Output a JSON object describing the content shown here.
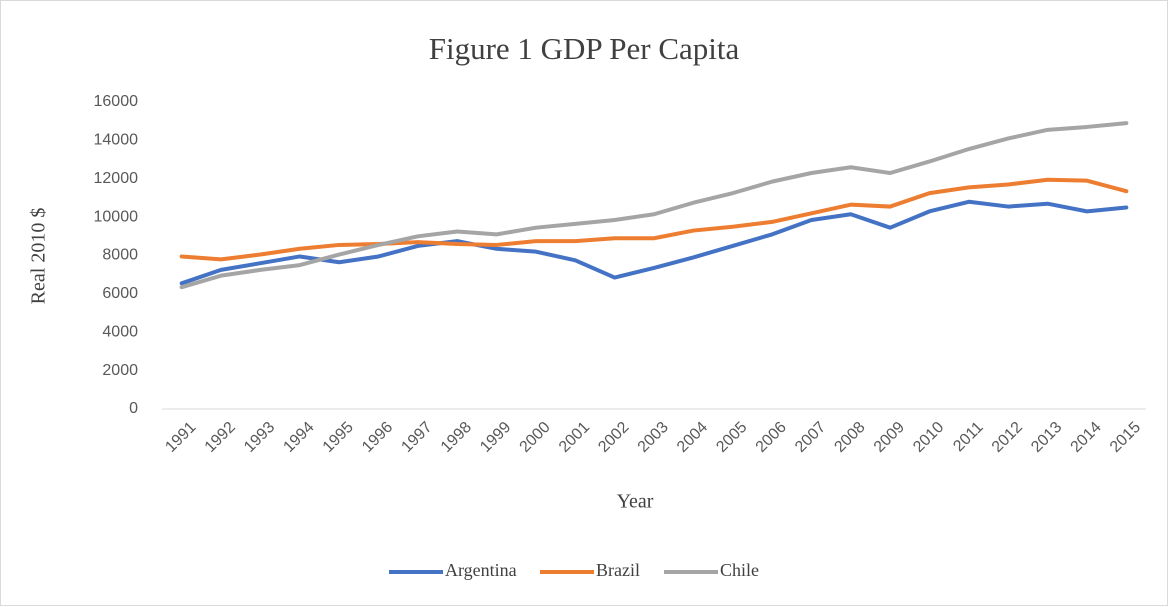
{
  "chart_data": {
    "type": "line",
    "title": "Figure 1 GDP Per Capita",
    "x_label": "Year",
    "y_label": "Real 2010 $",
    "categories": [
      "1991",
      "1992",
      "1993",
      "1994",
      "1995",
      "1996",
      "1997",
      "1998",
      "1999",
      "2000",
      "2001",
      "2002",
      "2003",
      "2004",
      "2005",
      "2006",
      "2007",
      "2008",
      "2009",
      "2010",
      "2011",
      "2012",
      "2013",
      "2014",
      "2015"
    ],
    "series": [
      {
        "name": "Argentina",
        "color": "#4472c4",
        "values": [
          6550,
          7250,
          7600,
          7950,
          7650,
          7950,
          8500,
          8750,
          8350,
          8200,
          7750,
          6850,
          7350,
          7900,
          8500,
          9100,
          9850,
          10150,
          9450,
          10300,
          10800,
          10550,
          10700,
          10300,
          10500
        ]
      },
      {
        "name": "Brazil",
        "color": "#ed7d31",
        "values": [
          7950,
          7800,
          8050,
          8350,
          8550,
          8600,
          8700,
          8600,
          8550,
          8750,
          8750,
          8900,
          8900,
          9300,
          9500,
          9750,
          10200,
          10650,
          10550,
          11250,
          11550,
          11700,
          11950,
          11900,
          11350
        ]
      },
      {
        "name": "Chile",
        "color": "#a5a5a5",
        "values": [
          6350,
          6950,
          7250,
          7500,
          8050,
          8550,
          9000,
          9250,
          9100,
          9450,
          9650,
          9850,
          10150,
          10750,
          11250,
          11850,
          12300,
          12600,
          12300,
          12900,
          13550,
          14100,
          14550,
          14700,
          14900
        ]
      }
    ],
    "ylim": [
      0,
      16000
    ],
    "yticks": [
      0,
      2000,
      4000,
      6000,
      8000,
      10000,
      12000,
      14000,
      16000
    ],
    "grid": false,
    "legend": "bottom"
  }
}
